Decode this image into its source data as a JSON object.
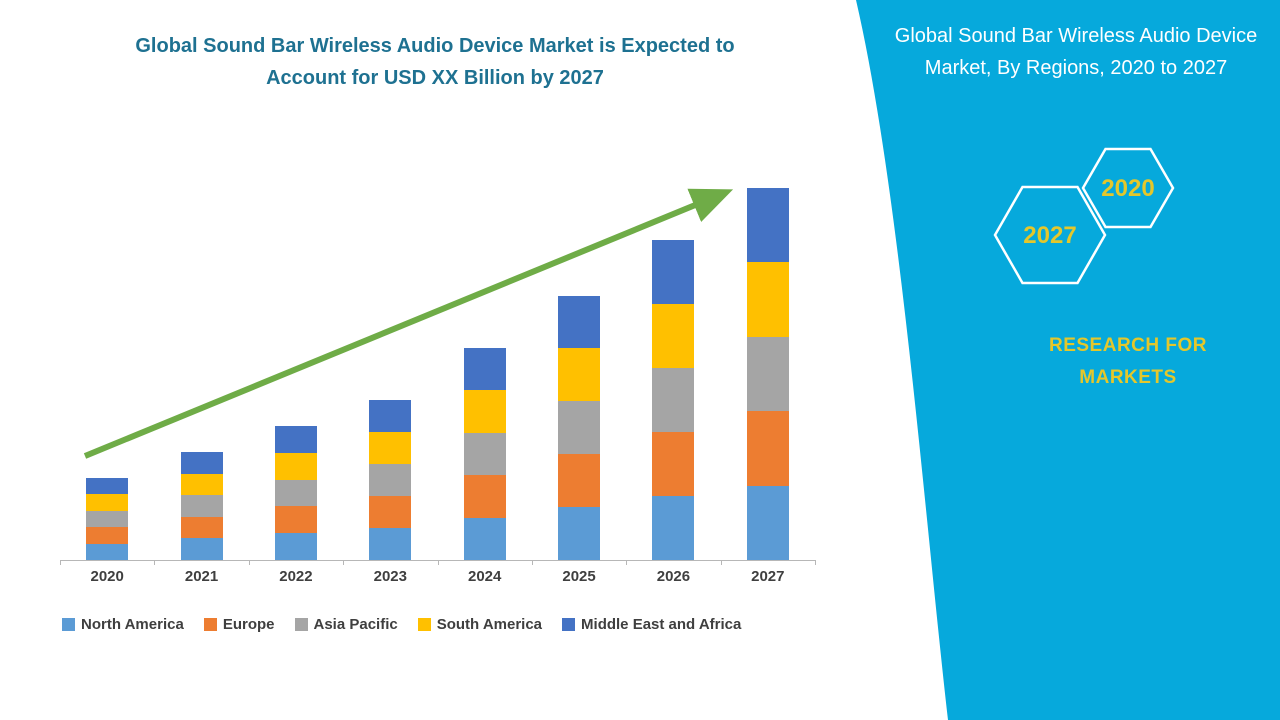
{
  "left": {
    "title": "Global Sound Bar Wireless Audio Device Market is Expected to Account for USD XX Billion by 2027"
  },
  "chart_data": {
    "type": "bar",
    "subtype": "stacked",
    "title": "Global Sound Bar Wireless Audio Device Market is Expected to Account for USD XX Billion by 2027",
    "categories": [
      "2020",
      "2021",
      "2022",
      "2023",
      "2024",
      "2025",
      "2026",
      "2027"
    ],
    "series": [
      {
        "name": "North America",
        "color": "#5B9BD5",
        "values": [
          4.4,
          5.8,
          7.2,
          8.6,
          11.4,
          14.2,
          17.2,
          20
        ]
      },
      {
        "name": "Europe",
        "color": "#ED7D31",
        "values": [
          4.4,
          5.8,
          7.2,
          8.6,
          11.4,
          14.2,
          17.2,
          20
        ]
      },
      {
        "name": "Asia Pacific",
        "color": "#A5A5A5",
        "values": [
          4.4,
          5.8,
          7.2,
          8.6,
          11.4,
          14.2,
          17.2,
          20
        ]
      },
      {
        "name": "South America",
        "color": "#FFC000",
        "values": [
          4.4,
          5.8,
          7.2,
          8.6,
          11.4,
          14.2,
          17.2,
          20
        ]
      },
      {
        "name": "Middle East and Africa",
        "color": "#4472C4",
        "values": [
          4.4,
          5.8,
          7.2,
          8.6,
          11.4,
          14.2,
          17.2,
          20
        ]
      }
    ],
    "xlabel": "",
    "ylabel": "",
    "ylim": [
      0,
      110
    ],
    "grid": false,
    "y_axis_shown": false,
    "legend_position": "bottom",
    "annotations": [
      "upward green trend arrow from 2020 to 2027"
    ],
    "values_unit": "USD XX Billion (values not labeled on chart; estimated relative units)"
  },
  "right_panel": {
    "title": "Global Sound Bar Wireless Audio Device Market, By Regions, 2020 to 2027",
    "hexagon_years": [
      "2027",
      "2020"
    ],
    "brand": "RESEARCH FOR MARKETS",
    "background_color": "#06A9DC",
    "accent_text_color": "#E4C72B",
    "arrow_color": "#6FAC47"
  }
}
